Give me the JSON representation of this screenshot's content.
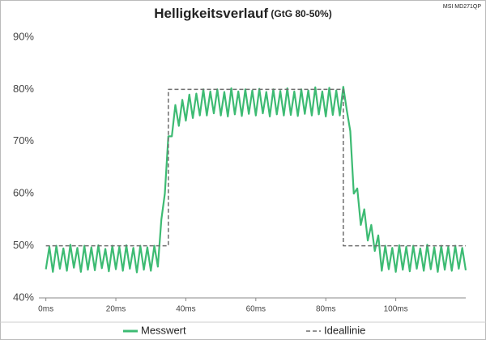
{
  "chart_data": {
    "type": "line",
    "title": "Helligkeitsverlauf",
    "subtitle": "(GtG 80-50%)",
    "corner_label": "MSI MD271QP",
    "xlim": [
      -2,
      120
    ],
    "ylim": [
      40,
      90
    ],
    "xticks": [
      {
        "value": 0,
        "label": "0ms"
      },
      {
        "value": 20,
        "label": "20ms"
      },
      {
        "value": 40,
        "label": "40ms"
      },
      {
        "value": 60,
        "label": "60ms"
      },
      {
        "value": 80,
        "label": "80ms"
      },
      {
        "value": 100,
        "label": "100ms"
      }
    ],
    "yticks": [
      {
        "value": 40,
        "label": "40%"
      },
      {
        "value": 50,
        "label": "50%"
      },
      {
        "value": 60,
        "label": "60%"
      },
      {
        "value": 70,
        "label": "70%"
      },
      {
        "value": 80,
        "label": "80%"
      },
      {
        "value": 90,
        "label": "90%"
      }
    ],
    "grid": false,
    "legend": "bottom",
    "series": [
      {
        "name": "Messwert",
        "color": "#3dbb73",
        "dashed": false,
        "x": [
          0,
          1,
          2,
          3,
          4,
          5,
          6,
          7,
          8,
          9,
          10,
          11,
          12,
          13,
          14,
          15,
          16,
          17,
          18,
          19,
          20,
          21,
          22,
          23,
          24,
          25,
          26,
          27,
          28,
          29,
          30,
          31,
          32,
          33,
          34,
          35,
          36,
          37,
          38,
          39,
          40,
          41,
          42,
          43,
          44,
          45,
          46,
          47,
          48,
          49,
          50,
          51,
          52,
          53,
          54,
          55,
          56,
          57,
          58,
          59,
          60,
          61,
          62,
          63,
          64,
          65,
          66,
          67,
          68,
          69,
          70,
          71,
          72,
          73,
          74,
          75,
          76,
          77,
          78,
          79,
          80,
          81,
          82,
          83,
          84,
          85,
          86,
          87,
          88,
          89,
          90,
          91,
          92,
          93,
          94,
          95,
          96,
          97,
          98,
          99,
          100,
          101,
          102,
          103,
          104,
          105,
          106,
          107,
          108,
          109,
          110,
          111,
          112,
          113,
          114,
          115,
          116,
          117,
          118,
          119,
          120
        ],
        "values": [
          45.5,
          49.8,
          45,
          50,
          45.6,
          49.5,
          45.2,
          50.2,
          45.8,
          49.6,
          45,
          50,
          45.4,
          49.7,
          45.3,
          50.1,
          45.7,
          49.4,
          45.1,
          50,
          45.5,
          49.8,
          45.2,
          50.1,
          45.6,
          49.6,
          44.9,
          50,
          45.4,
          49.7,
          45.2,
          50,
          46,
          55,
          60,
          71,
          71,
          77,
          73,
          78,
          74,
          79,
          74.5,
          79.2,
          75,
          80,
          75,
          79.6,
          75.4,
          80,
          75,
          79.5,
          74.8,
          80.2,
          75.2,
          79.6,
          74.9,
          80,
          75.3,
          79.8,
          75,
          80.1,
          75.4,
          79.5,
          74.8,
          80,
          75.2,
          79.7,
          75,
          80.2,
          75.1,
          79.6,
          74.9,
          80,
          75.3,
          79.8,
          75,
          80.4,
          75.2,
          79.6,
          74.8,
          80.3,
          75.1,
          79.8,
          75,
          80.5,
          76,
          72,
          60,
          61,
          54,
          57,
          51,
          54,
          49,
          52,
          45.2,
          50,
          45.5,
          49.6,
          45,
          50.1,
          45.4,
          49.8,
          45.1,
          50,
          45.6,
          49.5,
          45.2,
          50.2,
          45.5,
          49.7,
          45,
          50,
          45.4,
          49.8,
          45.2,
          50,
          45.6,
          49.6,
          45.3
        ]
      },
      {
        "name": "Ideallinie",
        "color": "#6e6e6e",
        "dashed": true,
        "x": [
          0,
          35,
          35,
          85,
          85,
          120
        ],
        "values": [
          50,
          50,
          80,
          80,
          50,
          50
        ]
      }
    ]
  }
}
